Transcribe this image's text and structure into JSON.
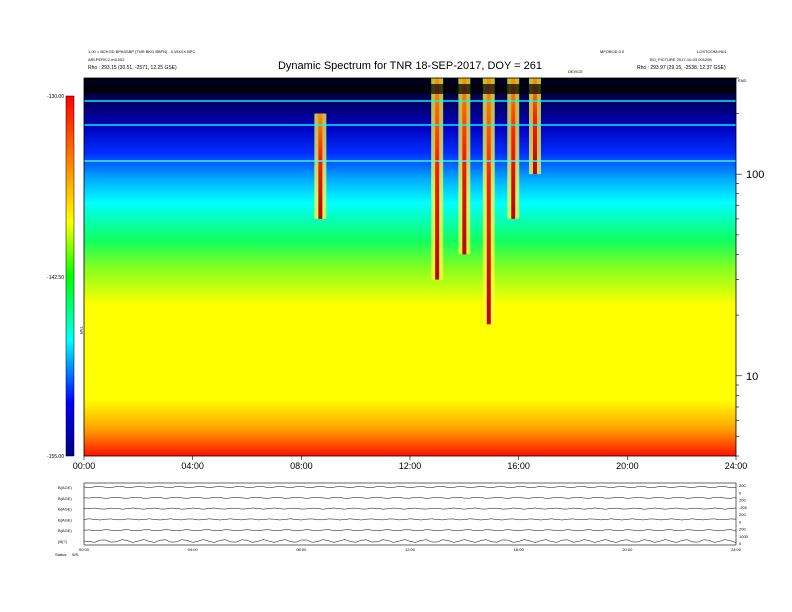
{
  "header": {
    "title": "Dynamic Spectrum for TNR 18-SEP-2017, DOY = 261",
    "left_line1": "1.00 = BCKGD BPASSBP (TNR BKG BBFN) - 0.WXXX BPC",
    "left_line2": "ARLPERS.2.m5.002",
    "left_line3": "Rho : 293.15 (30.51, -2571, 12.25 GSE)",
    "center_mark": "DEVICE",
    "right_line1": "MFOBOD.0.0",
    "right_line2": "LOSTOOM=N01",
    "right_line3": "BO_PICTURE 2017-10-03 001208",
    "right_line4": "Rho : 293.97 (29.15, -2538, 12.37 GSE)",
    "right_mark": "END"
  },
  "colorbar": {
    "labels": [
      "-130.00",
      "-142.50",
      "-155.00"
    ],
    "side_label": "TNR"
  },
  "time_ticks": [
    "00:00",
    "04:00",
    "08:00",
    "12:00",
    "16:00",
    "20:00",
    "24:00"
  ],
  "freq_ticks": [
    "100",
    "10"
  ],
  "aux": {
    "left_labels": [
      "B(AGE)",
      "B(AGE)",
      "B(AGE)",
      "B(AGE)",
      "B(AGE)",
      "(B(?)"
    ],
    "right_labels": [
      "200",
      "0",
      "200",
      "-200",
      "200",
      "0",
      "200",
      "1000",
      "0"
    ],
    "bottom_ticks": [
      "00:00",
      "04:00",
      "08:00",
      "12:00",
      "16:00",
      "20:00",
      "24:00"
    ],
    "footer_left": "Status",
    "footer_left2": "WS"
  },
  "chart_data": {
    "type": "heatmap",
    "title": "Dynamic Spectrum for TNR 18-SEP-2017, DOY = 261",
    "x_range": [
      "00:00",
      "24:00"
    ],
    "x_ticks": [
      "00:00",
      "04:00",
      "08:00",
      "12:00",
      "16:00",
      "20:00",
      "24:00"
    ],
    "y_scale": "log",
    "y_ticks": [
      100,
      10
    ],
    "y_range": [
      4,
      300
    ],
    "color_scale": {
      "min": -155.0,
      "max": -130.0,
      "ticks": [
        -130.0,
        -142.5,
        -155.0
      ],
      "colormap": [
        "#0000a0",
        "#0000ff",
        "#00ffff",
        "#00ff00",
        "#ffff00",
        "#ff8000",
        "#ff0000"
      ]
    },
    "bursts": [
      {
        "time_h": 8.7,
        "f_low": 60,
        "f_high": 200,
        "level": -131
      },
      {
        "time_h": 13.0,
        "f_low": 30,
        "f_high": 300,
        "level": -130
      },
      {
        "time_h": 14.0,
        "f_low": 40,
        "f_high": 300,
        "level": -131
      },
      {
        "time_h": 14.9,
        "f_low": 18,
        "f_high": 300,
        "level": -130
      },
      {
        "time_h": 15.8,
        "f_low": 60,
        "f_high": 300,
        "level": -131
      },
      {
        "time_h": 16.6,
        "f_low": 100,
        "f_high": 300,
        "level": -131
      }
    ]
  }
}
